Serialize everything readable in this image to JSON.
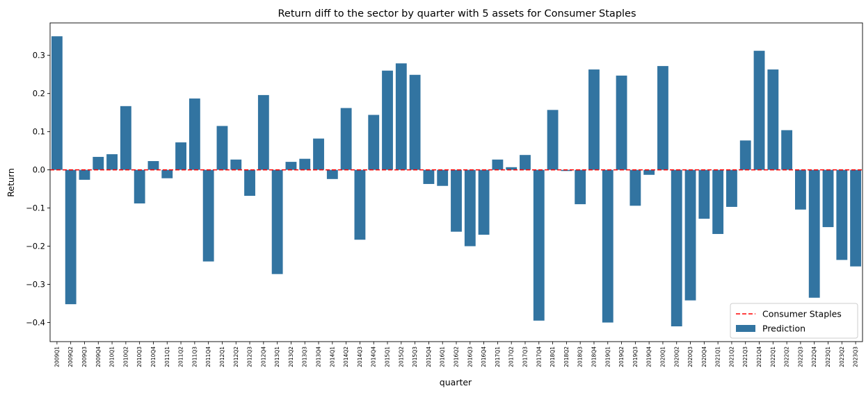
{
  "chart_data": {
    "type": "bar",
    "title": "Return diff to the sector by quarter with 5 assets for Consumer Staples",
    "xlabel": "quarter",
    "ylabel": "Return",
    "ylim": [
      -0.45,
      0.385
    ],
    "yticks": [
      -0.4,
      -0.3,
      -0.2,
      -0.1,
      0.0,
      0.1,
      0.2,
      0.3
    ],
    "ytick_labels": [
      "−0.4",
      "−0.3",
      "−0.2",
      "−0.1",
      "0.0",
      "0.1",
      "0.2",
      "0.3"
    ],
    "grid": false,
    "legend_position": "lower-right",
    "categories": [
      "2009Q1",
      "2009Q2",
      "2009Q3",
      "2009Q4",
      "2010Q1",
      "2010Q2",
      "2010Q3",
      "2010Q4",
      "2011Q1",
      "2011Q2",
      "2011Q3",
      "2011Q4",
      "2012Q1",
      "2012Q2",
      "2012Q3",
      "2012Q4",
      "2013Q1",
      "2013Q2",
      "2013Q3",
      "2013Q4",
      "2014Q1",
      "2014Q2",
      "2014Q3",
      "2014Q4",
      "2015Q1",
      "2015Q2",
      "2015Q3",
      "2015Q4",
      "2016Q1",
      "2016Q2",
      "2016Q3",
      "2016Q4",
      "2017Q1",
      "2017Q2",
      "2017Q3",
      "2017Q4",
      "2018Q1",
      "2018Q2",
      "2018Q3",
      "2018Q4",
      "2019Q1",
      "2019Q2",
      "2019Q3",
      "2019Q4",
      "2020Q1",
      "2020Q2",
      "2020Q3",
      "2020Q4",
      "2021Q1",
      "2021Q2",
      "2021Q3",
      "2021Q4",
      "2022Q1",
      "2022Q2",
      "2022Q3",
      "2022Q4",
      "2023Q1",
      "2023Q2",
      "2023Q3"
    ],
    "series": [
      {
        "name": "Prediction",
        "color": "#3274a1",
        "values": [
          0.35,
          -0.352,
          -0.026,
          0.034,
          0.041,
          0.167,
          -0.088,
          0.023,
          -0.022,
          0.072,
          0.187,
          -0.24,
          0.115,
          0.027,
          -0.068,
          0.196,
          -0.273,
          0.021,
          0.029,
          0.082,
          -0.024,
          0.162,
          -0.183,
          0.144,
          0.26,
          0.279,
          0.249,
          -0.037,
          -0.042,
          -0.162,
          -0.2,
          -0.17,
          0.027,
          0.007,
          0.039,
          -0.395,
          0.157,
          -0.003,
          -0.09,
          0.263,
          -0.4,
          0.247,
          -0.094,
          -0.013,
          0.272,
          -0.41,
          -0.342,
          -0.128,
          -0.168,
          -0.097,
          0.077,
          0.312,
          0.263,
          0.104,
          -0.104,
          -0.335,
          -0.15,
          -0.236,
          -0.253
        ]
      }
    ],
    "reference_line": {
      "name": "Consumer Staples",
      "value": 0.0,
      "color": "#ff0000",
      "style": "dashed"
    },
    "legend": [
      {
        "label": "Consumer Staples",
        "kind": "dashed-line",
        "color": "#ff0000"
      },
      {
        "label": "Prediction",
        "kind": "patch",
        "color": "#3274a1"
      }
    ]
  }
}
